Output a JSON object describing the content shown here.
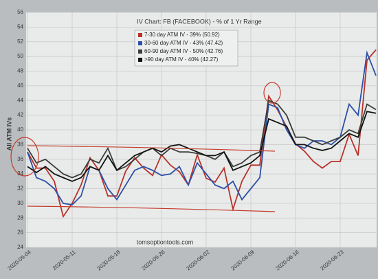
{
  "chart_data": {
    "type": "line",
    "title": "IV Chart: FB (FACEBOOK)  - % of 1 Yr Range",
    "y_label": "All ATM IVs",
    "watermark": "tomsoptiontools.com",
    "categories": [
      "2020-05-04",
      null,
      null,
      null,
      null,
      "2020-05-11",
      null,
      null,
      null,
      null,
      "2020-05-18",
      null,
      null,
      null,
      null,
      "2020-05-26",
      null,
      null,
      null,
      null,
      "2020-06-02",
      null,
      null,
      null,
      null,
      "2020-06-09",
      null,
      null,
      null,
      null,
      "2020-06-16",
      null,
      null,
      null,
      null,
      "2020-06-23",
      null,
      null,
      null,
      null
    ],
    "ylim": [
      24,
      56
    ],
    "yticks": [
      24,
      26,
      28,
      30,
      32,
      34,
      36,
      38,
      40,
      42,
      44,
      46,
      48,
      50,
      52,
      54,
      56
    ],
    "grid": true,
    "series": [
      {
        "name": "7-30 day ATM IV - 39% (50.92)",
        "color": "#b8322a",
        "values": [
          37,
          34.8,
          34.8,
          33,
          28.2,
          30,
          32.5,
          36.2,
          34.5,
          31,
          31,
          34.4,
          36.2,
          34.8,
          33.8,
          36.6,
          35.2,
          34.3,
          32.5,
          36.6,
          33.4,
          32.9,
          34.8,
          29.2,
          33,
          35.2,
          35.2,
          44.6,
          42.7,
          40.4,
          38.1,
          37.1,
          35.7,
          34.8,
          35.7,
          35.7,
          39.4,
          36.5,
          49.5,
          50.9
        ]
      },
      {
        "name": "30-60 day ATM IV - 43% (47.42)",
        "color": "#2d4fa8",
        "values": [
          37,
          33.5,
          33,
          32,
          30,
          29.8,
          31,
          35,
          34.5,
          32,
          30.5,
          32.5,
          34.5,
          35,
          34.5,
          33.8,
          34,
          35,
          32.5,
          35.5,
          34,
          32.5,
          32,
          33,
          30.5,
          32,
          33.5,
          43.5,
          43,
          40,
          38,
          37.5,
          38.5,
          38.5,
          38,
          39,
          43.5,
          42,
          50.5,
          47.4
        ]
      },
      {
        "name": "60-90 day ATM IV - 50% (42.76)",
        "color": "#3a3d3a",
        "values": [
          37.5,
          35.5,
          36,
          35,
          34,
          33.5,
          34,
          36,
          35.5,
          37.5,
          34.5,
          35,
          36,
          37,
          37.5,
          36.5,
          37.5,
          37,
          37,
          36.8,
          36.5,
          36,
          37,
          35,
          35.5,
          36.5,
          37,
          44,
          43.5,
          42,
          39,
          39,
          38.5,
          38,
          38.5,
          39,
          40,
          39.5,
          43.5,
          42.76
        ]
      },
      {
        "name": ">90 day ATM IV - 40% (42.27)",
        "color": "#111311",
        "values": [
          35,
          34.2,
          35,
          34,
          33.5,
          33,
          33.5,
          35,
          34.5,
          36.5,
          34.5,
          35.5,
          36.5,
          37,
          37.5,
          37,
          37.8,
          38,
          37.5,
          37,
          36.5,
          36.5,
          37,
          34.5,
          35,
          35.5,
          36.5,
          41.5,
          41,
          40.5,
          38,
          38,
          37.5,
          37.2,
          37.5,
          38.5,
          39.5,
          39,
          42.5,
          42.27
        ]
      }
    ]
  }
}
